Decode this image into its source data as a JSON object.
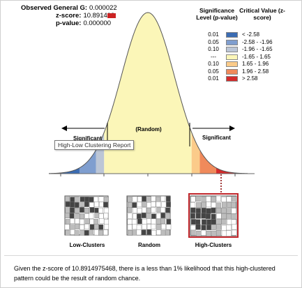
{
  "stats": {
    "g_label": "Observed General G:",
    "g_value": "0.000022",
    "z_label": "z-score:",
    "z_value": "10.891498",
    "p_label": "p-value:",
    "p_value": "0.000000"
  },
  "legend": {
    "sig_header": "Significance Level (p-value)",
    "crit_header": "Critical Value (z-score)",
    "rows": [
      {
        "p": "0.01",
        "z": "< -2.58",
        "color": "#3b6cb3"
      },
      {
        "p": "0.05",
        "z": "-2.58 - -1.96",
        "color": "#7f9ecf"
      },
      {
        "p": "0.10",
        "z": "-1.96 - -1.65",
        "color": "#bcc6d6"
      },
      {
        "p": "---",
        "z": "-1.65 - 1.65",
        "color": "#fbf6b8"
      },
      {
        "p": "0.10",
        "z": "1.65 - 1.96",
        "color": "#fbcb8a"
      },
      {
        "p": "0.05",
        "z": "1.96 - 2.58",
        "color": "#f08a5b"
      },
      {
        "p": "0.01",
        "z": "> 2.58",
        "color": "#d42b2b"
      }
    ]
  },
  "curve": {
    "random_label": "(Random)",
    "significant_left": "Significant",
    "significant_right": "Significant"
  },
  "tooltip": "High-Low Clustering Report",
  "thumbnails": {
    "low": "Low-Clusters",
    "random": "Random",
    "high": "High-Clusters"
  },
  "caption": "Given the z-score of 10.8914975468, there is a less than 1% likelihood that this high-clustered pattern could be the result of random chance."
}
